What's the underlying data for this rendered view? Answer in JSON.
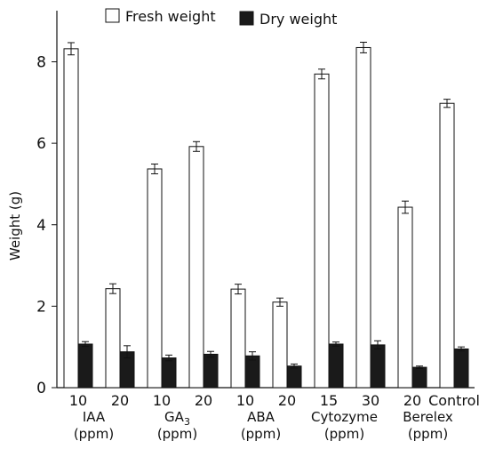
{
  "chart_data": {
    "type": "bar",
    "ylabel": "Weight (g)",
    "ylim": [
      0,
      9
    ],
    "yticks": [
      0,
      2,
      4,
      6,
      8
    ],
    "legend_position": "top",
    "legend": [
      {
        "name": "Fresh weight",
        "fill": "#ffffff"
      },
      {
        "name": "Dry weight",
        "fill": "#1a1a1a"
      }
    ],
    "categories": [
      "10",
      "20",
      "10",
      "20",
      "10",
      "20",
      "15",
      "30",
      "20",
      "Control"
    ],
    "groups": [
      {
        "line1": "IAA",
        "line2": "(ppm)"
      },
      {
        "line1": "GA",
        "sub": "3",
        "line2": "(ppm)"
      },
      {
        "line1": "ABA",
        "line2": "(ppm)"
      },
      {
        "line1": "Cytozyme",
        "line2": "(ppm)"
      },
      {
        "line1": "Berelex",
        "line2": "(ppm)"
      }
    ],
    "series": [
      {
        "name": "Fresh weight",
        "values": [
          8.32,
          2.43,
          5.37,
          5.92,
          2.42,
          2.1,
          7.7,
          8.35,
          4.43,
          6.98
        ],
        "errors": [
          0.15,
          0.12,
          0.12,
          0.12,
          0.12,
          0.1,
          0.12,
          0.13,
          0.15,
          0.1
        ]
      },
      {
        "name": "Dry weight",
        "values": [
          1.07,
          0.88,
          0.73,
          0.82,
          0.78,
          0.53,
          1.07,
          1.05,
          0.5,
          0.95
        ],
        "errors": [
          0.06,
          0.15,
          0.07,
          0.07,
          0.1,
          0.05,
          0.05,
          0.1,
          0.03,
          0.05
        ]
      }
    ]
  }
}
